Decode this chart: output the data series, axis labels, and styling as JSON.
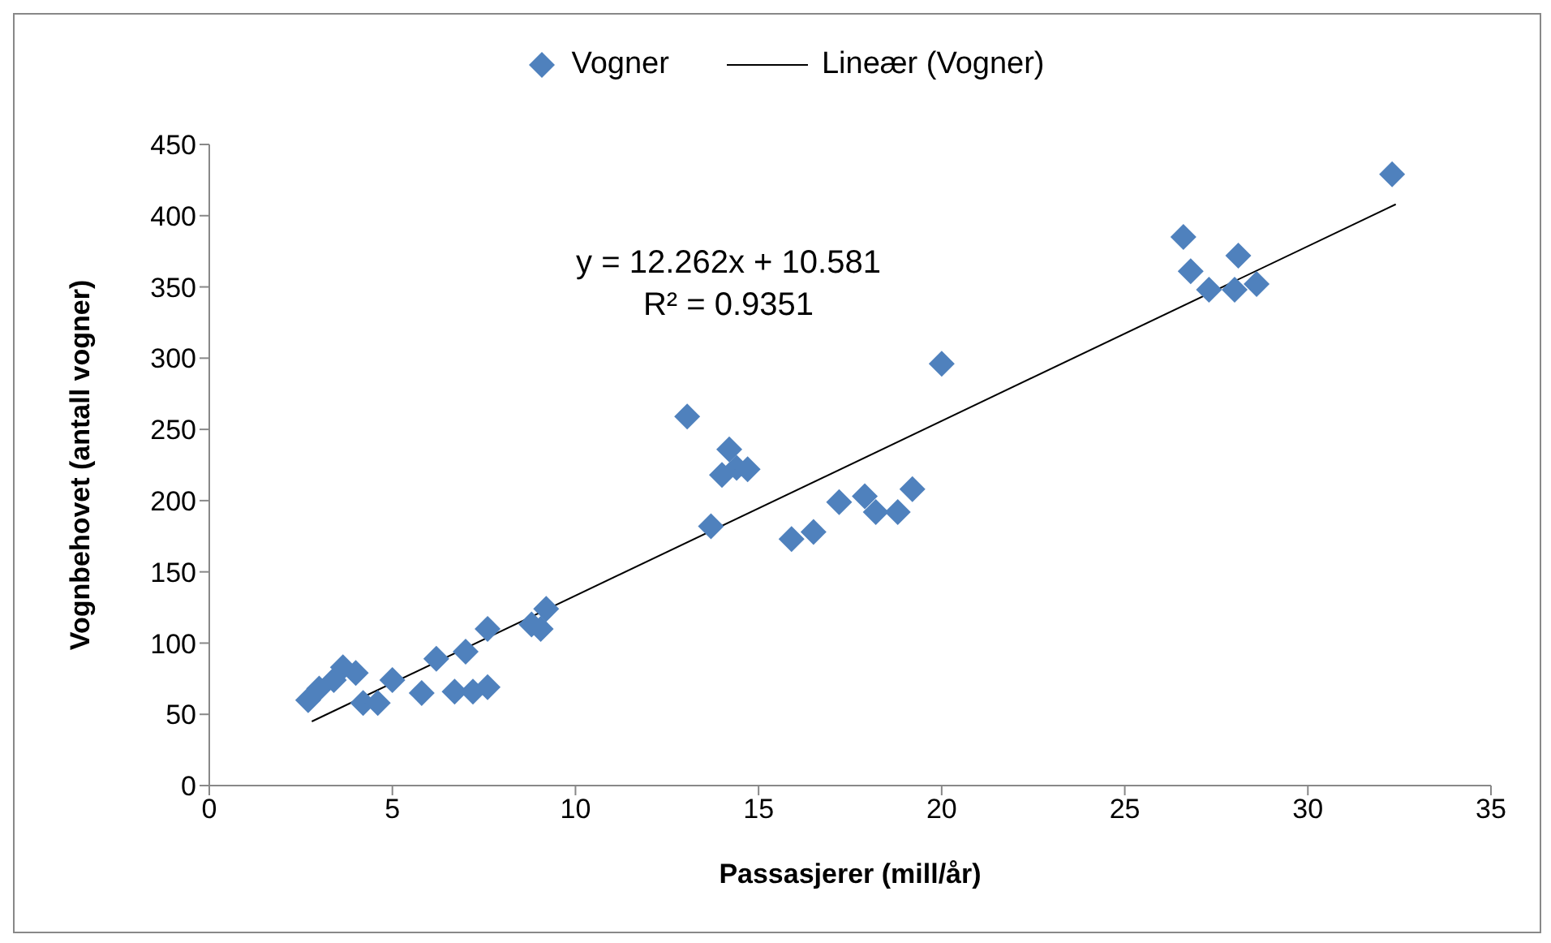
{
  "chart_data": {
    "type": "scatter",
    "xlabel": "Passasjerer (mill/år)",
    "ylabel": "Vognbehovet (antall vogner)",
    "xlim": [
      0,
      35
    ],
    "xticks": [
      0,
      5,
      10,
      15,
      20,
      25,
      30,
      35
    ],
    "ylim": [
      0,
      450
    ],
    "yticks": [
      0,
      50,
      100,
      150,
      200,
      250,
      300,
      350,
      400,
      450
    ],
    "legend": "top",
    "grid": false,
    "annotations": [
      "y = 12.262x + 10.581",
      "R² = 0.9351"
    ],
    "series": [
      {
        "name": "Vogner",
        "marker": "diamond",
        "color": "#4f81bd",
        "x": [
          2.7,
          3.0,
          3.4,
          3.65,
          4.0,
          4.2,
          4.6,
          5.0,
          5.8,
          6.2,
          6.7,
          7.0,
          7.2,
          7.6,
          7.6,
          8.8,
          9.05,
          9.2,
          13.05,
          13.7,
          14.0,
          14.2,
          14.4,
          14.7,
          15.9,
          16.5,
          17.2,
          17.9,
          18.2,
          18.8,
          19.2,
          20.0,
          26.6,
          26.8,
          27.3,
          28.0,
          28.1,
          28.6,
          32.3
        ],
        "values": [
          60,
          68,
          74,
          83,
          79,
          58,
          58,
          74,
          65,
          89,
          66,
          94,
          66,
          69,
          110,
          113,
          110,
          124,
          259,
          182,
          218,
          236,
          223,
          222,
          173,
          178,
          199,
          203,
          192,
          192,
          208,
          296,
          385,
          361,
          348,
          348,
          372,
          352,
          429
        ]
      },
      {
        "name": "Lineær (Vogner)",
        "type": "line",
        "marker": "none",
        "color": "#000000",
        "x": [
          2.8,
          32.4
        ],
        "values": [
          45,
          408
        ]
      }
    ]
  }
}
